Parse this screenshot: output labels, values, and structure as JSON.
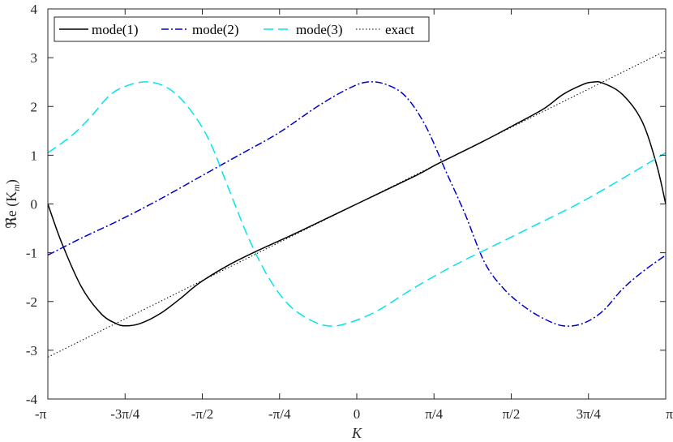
{
  "chart_data": {
    "type": "line",
    "title": "",
    "xlabel": "K",
    "ylabel": "ℜe (K",
    "ylabel_sub": "m",
    "ylabel_close": ")",
    "xlim": [
      -3.14159265,
      3.14159265
    ],
    "ylim": [
      -4,
      4
    ],
    "xticks": [
      {
        "value": -3.14159265,
        "label": "-π"
      },
      {
        "value": -2.35619449,
        "label": "-3π/4"
      },
      {
        "value": -1.57079633,
        "label": "-π/2"
      },
      {
        "value": -0.78539816,
        "label": "-π/4"
      },
      {
        "value": 0,
        "label": "0"
      },
      {
        "value": 0.78539816,
        "label": "π/4"
      },
      {
        "value": 1.57079633,
        "label": "π/2"
      },
      {
        "value": 2.35619449,
        "label": "3π/4"
      },
      {
        "value": 3.14159265,
        "label": "π"
      }
    ],
    "yticks": [
      {
        "value": -4,
        "label": "-4"
      },
      {
        "value": -3,
        "label": "-3"
      },
      {
        "value": -2,
        "label": "-2"
      },
      {
        "value": -1,
        "label": "-1"
      },
      {
        "value": 0,
        "label": "0"
      },
      {
        "value": 1,
        "label": "1"
      },
      {
        "value": 2,
        "label": "2"
      },
      {
        "value": 3,
        "label": "3"
      },
      {
        "value": 4,
        "label": "4"
      }
    ],
    "grid": false,
    "legend": {
      "placement": "top-left",
      "orientation": "horizontal"
    },
    "series": [
      {
        "name": "mode(1)",
        "color": "#000000",
        "dash": "solid",
        "x": [
          -3.1416,
          -3.0,
          -2.8,
          -2.6,
          -2.45,
          -2.35,
          -2.2,
          -2.0,
          -1.8,
          -1.6,
          -1.3,
          -1.0,
          -0.6,
          0,
          0.6,
          0.8,
          1.0,
          1.3,
          1.6,
          1.9,
          2.1,
          2.3,
          2.4,
          2.5,
          2.7,
          2.9,
          3.05,
          3.1416
        ],
        "y": [
          0.0,
          -0.8,
          -1.7,
          -2.25,
          -2.45,
          -2.5,
          -2.45,
          -2.25,
          -1.95,
          -1.62,
          -1.25,
          -0.95,
          -0.58,
          0.0,
          0.58,
          0.8,
          1.0,
          1.3,
          1.62,
          1.95,
          2.25,
          2.45,
          2.5,
          2.48,
          2.25,
          1.7,
          0.8,
          0.0
        ]
      },
      {
        "name": "mode(2)",
        "color": "#0000CC",
        "dash": "dashdot",
        "x": [
          -3.1416,
          -2.8,
          -2.4,
          -2.0,
          -1.6,
          -1.2,
          -0.8,
          -0.4,
          -0.1,
          0.1,
          0.3,
          0.5,
          0.7,
          0.9,
          1.1,
          1.3,
          1.5,
          1.7,
          1.9,
          2.1,
          2.3,
          2.5,
          2.7,
          2.9,
          3.1416
        ],
        "y": [
          -1.05,
          -0.7,
          -0.32,
          0.1,
          0.55,
          1.0,
          1.45,
          2.0,
          2.35,
          2.5,
          2.45,
          2.2,
          1.6,
          0.7,
          -0.2,
          -1.2,
          -1.75,
          -2.1,
          -2.35,
          -2.5,
          -2.45,
          -2.2,
          -1.75,
          -1.4,
          -1.05
        ]
      },
      {
        "name": "mode(3)",
        "color": "#00E5EE",
        "dash": "dashed",
        "x": [
          -3.1416,
          -2.9,
          -2.7,
          -2.5,
          -2.3,
          -2.1,
          -1.9,
          -1.7,
          -1.5,
          -1.3,
          -1.1,
          -0.9,
          -0.7,
          -0.5,
          -0.3,
          -0.1,
          0.2,
          0.6,
          1.0,
          1.4,
          1.8,
          2.2,
          2.6,
          3.1416
        ],
        "y": [
          1.05,
          1.4,
          1.8,
          2.25,
          2.45,
          2.5,
          2.35,
          1.95,
          1.3,
          0.3,
          -0.7,
          -1.5,
          -2.05,
          -2.35,
          -2.5,
          -2.45,
          -2.2,
          -1.7,
          -1.25,
          -0.85,
          -0.45,
          -0.05,
          0.4,
          1.05
        ]
      },
      {
        "name": "exact",
        "color": "#000000",
        "dash": "dotted",
        "x": [
          -3.1416,
          3.1416
        ],
        "y": [
          -3.1416,
          3.1416
        ]
      }
    ]
  }
}
